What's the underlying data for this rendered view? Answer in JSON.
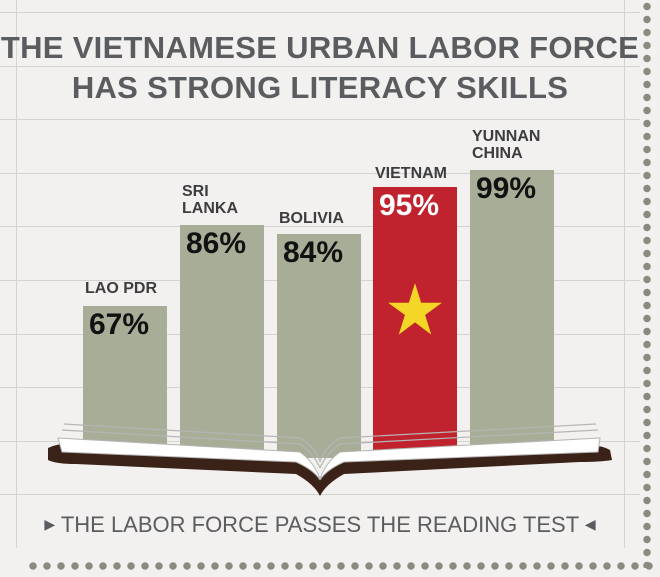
{
  "title_line1": "THE VIETNAMESE URBAN LABOR FORCE",
  "title_line2": "HAS STRONG LITERACY SKILLS",
  "footer": "THE LABOR FORCE PASSES THE READING TEST",
  "colors": {
    "bar": "#a7ad97",
    "highlight": "#c0232e",
    "star": "#f4d726",
    "book_cover": "#3b2218",
    "page": "#ffffff"
  },
  "highlight_icon": "star-icon",
  "chart_data": {
    "type": "bar",
    "title": "THE VIETNAMESE URBAN LABOR FORCE HAS STRONG LITERACY SKILLS",
    "categories": [
      "LAO PDR",
      "SRI LANKA",
      "BOLIVIA",
      "VIETNAM",
      "YUNNAN CHINA"
    ],
    "category_lines": [
      [
        "LAO PDR"
      ],
      [
        "SRI",
        "LANKA"
      ],
      [
        "BOLIVIA"
      ],
      [
        "VIETNAM"
      ],
      [
        "YUNNAN",
        "CHINA"
      ]
    ],
    "values": [
      67,
      86,
      84,
      95,
      99
    ],
    "value_labels": [
      "67%",
      "86%",
      "84%",
      "95%",
      "99%"
    ],
    "highlight": "VIETNAM",
    "unit": "%",
    "ylim": [
      0,
      100
    ],
    "grid": true
  }
}
